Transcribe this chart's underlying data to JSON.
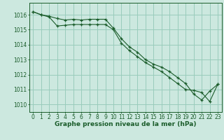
{
  "title": "Graphe pression niveau de la mer (hPa)",
  "bg_color": "#cce8df",
  "plot_bg_color": "#cce8df",
  "grid_color": "#99ccbb",
  "line_color": "#1a5c2a",
  "marker_color": "#1a5c2a",
  "xlim": [
    -0.5,
    23.5
  ],
  "ylim": [
    1009.5,
    1016.8
  ],
  "yticks": [
    1010,
    1011,
    1012,
    1013,
    1014,
    1015,
    1016
  ],
  "xticks": [
    0,
    1,
    2,
    3,
    4,
    5,
    6,
    7,
    8,
    9,
    10,
    11,
    12,
    13,
    14,
    15,
    16,
    17,
    18,
    19,
    20,
    21,
    22,
    23
  ],
  "series1_x": [
    0,
    1,
    2,
    3,
    4,
    5,
    6,
    7,
    8,
    9,
    10,
    11,
    12,
    13,
    14,
    15,
    16,
    17,
    18,
    19,
    20,
    21,
    22,
    23
  ],
  "series1_y": [
    1016.2,
    1016.0,
    1015.9,
    1015.75,
    1015.65,
    1015.7,
    1015.65,
    1015.7,
    1015.7,
    1015.7,
    1015.1,
    1014.4,
    1013.85,
    1013.5,
    1013.0,
    1012.7,
    1012.5,
    1012.2,
    1011.8,
    1011.4,
    1010.7,
    1010.3,
    1010.9,
    1011.35
  ],
  "series2_x": [
    0,
    1,
    2,
    3,
    4,
    5,
    6,
    7,
    8,
    9,
    10,
    11,
    12,
    13,
    14,
    15,
    16,
    17,
    18,
    19,
    20,
    21,
    22,
    23
  ],
  "series2_y": [
    1016.2,
    1016.0,
    1015.85,
    1015.25,
    1015.3,
    1015.35,
    1015.35,
    1015.35,
    1015.35,
    1015.35,
    1015.0,
    1014.1,
    1013.6,
    1013.2,
    1012.8,
    1012.5,
    1012.2,
    1011.8,
    1011.4,
    1011.0,
    1010.95,
    1010.8,
    1010.2,
    1011.35
  ],
  "tick_fontsize": 5.5,
  "xlabel_fontsize": 6.5
}
